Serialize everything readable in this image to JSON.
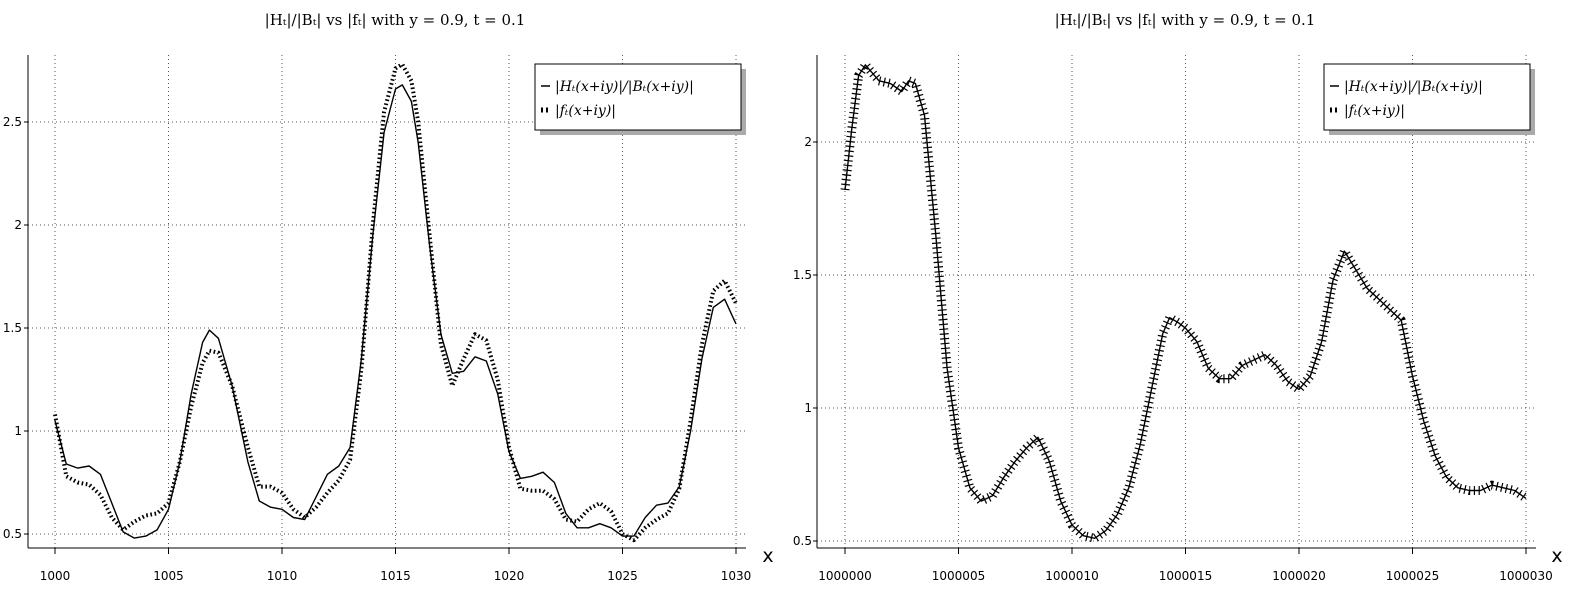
{
  "chart_data": [
    {
      "type": "line",
      "title": "|Hₜ|/|Bₜ| vs |fₜ| with y = 0.9, t = 0.1",
      "xlabel": "x",
      "ylabel": "",
      "xlim": [
        1000,
        1030
      ],
      "ylim": [
        0.45,
        2.8
      ],
      "xticks": [
        1000,
        1005,
        1010,
        1015,
        1020,
        1025,
        1030
      ],
      "yticks": [
        0.5,
        1,
        1.5,
        2,
        2.5
      ],
      "xtick_labels": [
        "1000",
        "1005",
        "1010",
        "1015",
        "1020",
        "1025",
        "1030"
      ],
      "ytick_labels": [
        "0.5",
        "1",
        "1.5",
        "2",
        "2.5"
      ],
      "grid": true,
      "legend_position": "top-right",
      "series": [
        {
          "name": "|Hₜ(x+iy)|/|Bₜ(x+iy)|",
          "style": "solid",
          "points": [
            [
              1000,
              1.05
            ],
            [
              1000.5,
              0.84
            ],
            [
              1001,
              0.82
            ],
            [
              1001.5,
              0.83
            ],
            [
              1002,
              0.79
            ],
            [
              1002.5,
              0.65
            ],
            [
              1003,
              0.51
            ],
            [
              1003.5,
              0.48
            ],
            [
              1004,
              0.49
            ],
            [
              1004.5,
              0.52
            ],
            [
              1005,
              0.62
            ],
            [
              1005.5,
              0.85
            ],
            [
              1006,
              1.18
            ],
            [
              1006.5,
              1.43
            ],
            [
              1006.8,
              1.49
            ],
            [
              1007.2,
              1.45
            ],
            [
              1007.8,
              1.22
            ],
            [
              1008.5,
              0.85
            ],
            [
              1009,
              0.66
            ],
            [
              1009.5,
              0.63
            ],
            [
              1010,
              0.62
            ],
            [
              1010.5,
              0.58
            ],
            [
              1011,
              0.57
            ],
            [
              1011.5,
              0.68
            ],
            [
              1012,
              0.79
            ],
            [
              1012.5,
              0.83
            ],
            [
              1013,
              0.92
            ],
            [
              1013.5,
              1.35
            ],
            [
              1014,
              1.95
            ],
            [
              1014.5,
              2.45
            ],
            [
              1015,
              2.66
            ],
            [
              1015.3,
              2.68
            ],
            [
              1015.7,
              2.6
            ],
            [
              1016,
              2.4
            ],
            [
              1016.5,
              1.9
            ],
            [
              1017,
              1.47
            ],
            [
              1017.5,
              1.28
            ],
            [
              1018,
              1.29
            ],
            [
              1018.5,
              1.36
            ],
            [
              1019,
              1.34
            ],
            [
              1019.5,
              1.18
            ],
            [
              1020,
              0.9
            ],
            [
              1020.5,
              0.77
            ],
            [
              1021,
              0.78
            ],
            [
              1021.5,
              0.8
            ],
            [
              1022,
              0.75
            ],
            [
              1022.5,
              0.6
            ],
            [
              1023,
              0.53
            ],
            [
              1023.5,
              0.53
            ],
            [
              1024,
              0.55
            ],
            [
              1024.5,
              0.53
            ],
            [
              1025,
              0.49
            ],
            [
              1025.5,
              0.49
            ],
            [
              1026,
              0.58
            ],
            [
              1026.5,
              0.64
            ],
            [
              1027,
              0.65
            ],
            [
              1027.5,
              0.73
            ],
            [
              1028,
              1.0
            ],
            [
              1028.5,
              1.35
            ],
            [
              1029,
              1.6
            ],
            [
              1029.5,
              1.64
            ],
            [
              1030,
              1.52
            ]
          ]
        },
        {
          "name": "|fₜ(x+iy)|",
          "style": "dotted",
          "points": [
            [
              1000,
              1.08
            ],
            [
              1000.5,
              0.78
            ],
            [
              1001,
              0.75
            ],
            [
              1001.5,
              0.74
            ],
            [
              1002,
              0.69
            ],
            [
              1002.5,
              0.58
            ],
            [
              1003,
              0.52
            ],
            [
              1003.5,
              0.56
            ],
            [
              1004,
              0.59
            ],
            [
              1004.5,
              0.6
            ],
            [
              1005,
              0.65
            ],
            [
              1005.5,
              0.85
            ],
            [
              1006,
              1.12
            ],
            [
              1006.5,
              1.33
            ],
            [
              1006.8,
              1.39
            ],
            [
              1007.2,
              1.38
            ],
            [
              1007.8,
              1.22
            ],
            [
              1008.5,
              0.92
            ],
            [
              1009,
              0.73
            ],
            [
              1009.5,
              0.73
            ],
            [
              1010,
              0.7
            ],
            [
              1010.5,
              0.62
            ],
            [
              1011,
              0.58
            ],
            [
              1011.5,
              0.63
            ],
            [
              1012,
              0.7
            ],
            [
              1012.5,
              0.76
            ],
            [
              1013,
              0.86
            ],
            [
              1013.5,
              1.3
            ],
            [
              1014,
              2.0
            ],
            [
              1014.5,
              2.55
            ],
            [
              1015,
              2.76
            ],
            [
              1015.3,
              2.78
            ],
            [
              1015.7,
              2.7
            ],
            [
              1016,
              2.5
            ],
            [
              1016.5,
              1.95
            ],
            [
              1017,
              1.42
            ],
            [
              1017.5,
              1.22
            ],
            [
              1018,
              1.35
            ],
            [
              1018.5,
              1.47
            ],
            [
              1019,
              1.44
            ],
            [
              1019.5,
              1.25
            ],
            [
              1020,
              0.92
            ],
            [
              1020.5,
              0.72
            ],
            [
              1021,
              0.71
            ],
            [
              1021.5,
              0.71
            ],
            [
              1022,
              0.67
            ],
            [
              1022.5,
              0.57
            ],
            [
              1023,
              0.56
            ],
            [
              1023.5,
              0.62
            ],
            [
              1024,
              0.65
            ],
            [
              1024.5,
              0.61
            ],
            [
              1025,
              0.5
            ],
            [
              1025.5,
              0.47
            ],
            [
              1026,
              0.53
            ],
            [
              1026.5,
              0.57
            ],
            [
              1027,
              0.6
            ],
            [
              1027.5,
              0.72
            ],
            [
              1028,
              1.05
            ],
            [
              1028.5,
              1.42
            ],
            [
              1029,
              1.68
            ],
            [
              1029.5,
              1.73
            ],
            [
              1030,
              1.62
            ]
          ]
        }
      ]
    },
    {
      "type": "line",
      "title": "|Hₜ|/|Bₜ| vs |fₜ| with y = 0.9, t = 0.1",
      "xlabel": "x",
      "ylabel": "",
      "xlim": [
        1000000,
        1000030
      ],
      "ylim": [
        0.48,
        2.32
      ],
      "xticks": [
        1000000,
        1000005,
        1000010,
        1000015,
        1000020,
        1000025,
        1000030
      ],
      "yticks": [
        0.5,
        1,
        1.5,
        2
      ],
      "xtick_labels": [
        "1000000",
        "1000005",
        "1000010",
        "1000015",
        "1000020",
        "1000025",
        "1000030"
      ],
      "ytick_labels": [
        "0.5",
        "1",
        "1.5",
        "2"
      ],
      "grid": true,
      "legend_position": "top-right",
      "series": [
        {
          "name": "|Hₜ(x+iy)|/|Bₜ(x+iy)|",
          "style": "solid",
          "points": [
            [
              1000000,
              1.82
            ],
            [
              1000000.3,
              2.05
            ],
            [
              1000000.6,
              2.25
            ],
            [
              1000000.9,
              2.29
            ],
            [
              1000001.2,
              2.26
            ],
            [
              1000001.5,
              2.23
            ],
            [
              1000002,
              2.22
            ],
            [
              1000002.5,
              2.19
            ],
            [
              1000002.8,
              2.23
            ],
            [
              1000003.1,
              2.22
            ],
            [
              1000003.5,
              2.1
            ],
            [
              1000004,
              1.65
            ],
            [
              1000004.5,
              1.15
            ],
            [
              1000005,
              0.85
            ],
            [
              1000005.5,
              0.7
            ],
            [
              1000006,
              0.65
            ],
            [
              1000006.5,
              0.67
            ],
            [
              1000007,
              0.74
            ],
            [
              1000007.5,
              0.8
            ],
            [
              1000008,
              0.85
            ],
            [
              1000008.5,
              0.89
            ],
            [
              1000009,
              0.8
            ],
            [
              1000009.5,
              0.65
            ],
            [
              1000010,
              0.56
            ],
            [
              1000010.5,
              0.52
            ],
            [
              1000011,
              0.51
            ],
            [
              1000011.5,
              0.54
            ],
            [
              1000012,
              0.6
            ],
            [
              1000012.5,
              0.7
            ],
            [
              1000013,
              0.86
            ],
            [
              1000013.5,
              1.07
            ],
            [
              1000014,
              1.28
            ],
            [
              1000014.3,
              1.34
            ],
            [
              1000014.7,
              1.32
            ],
            [
              1000015,
              1.3
            ],
            [
              1000015.5,
              1.25
            ],
            [
              1000016,
              1.15
            ],
            [
              1000016.5,
              1.11
            ],
            [
              1000017,
              1.11
            ],
            [
              1000017.5,
              1.16
            ],
            [
              1000018,
              1.18
            ],
            [
              1000018.5,
              1.2
            ],
            [
              1000019,
              1.16
            ],
            [
              1000019.5,
              1.1
            ],
            [
              1000020,
              1.07
            ],
            [
              1000020.5,
              1.12
            ],
            [
              1000021,
              1.25
            ],
            [
              1000021.5,
              1.48
            ],
            [
              1000022,
              1.59
            ],
            [
              1000022.5,
              1.52
            ],
            [
              1000023,
              1.45
            ],
            [
              1000023.5,
              1.41
            ],
            [
              1000024,
              1.37
            ],
            [
              1000024.5,
              1.33
            ],
            [
              1000025,
              1.12
            ],
            [
              1000025.5,
              0.95
            ],
            [
              1000026,
              0.82
            ],
            [
              1000026.5,
              0.74
            ],
            [
              1000027,
              0.7
            ],
            [
              1000027.5,
              0.69
            ],
            [
              1000028,
              0.69
            ],
            [
              1000028.5,
              0.71
            ],
            [
              1000029,
              0.7
            ],
            [
              1000029.5,
              0.69
            ],
            [
              1000030,
              0.66
            ]
          ]
        },
        {
          "name": "|fₜ(x+iy)|",
          "style": "ticks",
          "points": [
            [
              1000000,
              1.82
            ],
            [
              1000000.3,
              2.05
            ],
            [
              1000000.6,
              2.25
            ],
            [
              1000000.9,
              2.29
            ],
            [
              1000001.2,
              2.26
            ],
            [
              1000001.5,
              2.23
            ],
            [
              1000002,
              2.22
            ],
            [
              1000002.5,
              2.19
            ],
            [
              1000002.8,
              2.23
            ],
            [
              1000003.1,
              2.22
            ],
            [
              1000003.5,
              2.1
            ],
            [
              1000004,
              1.65
            ],
            [
              1000004.5,
              1.15
            ],
            [
              1000005,
              0.85
            ],
            [
              1000005.5,
              0.7
            ],
            [
              1000006,
              0.65
            ],
            [
              1000006.5,
              0.67
            ],
            [
              1000007,
              0.74
            ],
            [
              1000007.5,
              0.8
            ],
            [
              1000008,
              0.85
            ],
            [
              1000008.5,
              0.89
            ],
            [
              1000009,
              0.8
            ],
            [
              1000009.5,
              0.65
            ],
            [
              1000010,
              0.56
            ],
            [
              1000010.5,
              0.52
            ],
            [
              1000011,
              0.51
            ],
            [
              1000011.5,
              0.54
            ],
            [
              1000012,
              0.6
            ],
            [
              1000012.5,
              0.7
            ],
            [
              1000013,
              0.86
            ],
            [
              1000013.5,
              1.07
            ],
            [
              1000014,
              1.28
            ],
            [
              1000014.3,
              1.34
            ],
            [
              1000014.7,
              1.32
            ],
            [
              1000015,
              1.3
            ],
            [
              1000015.5,
              1.25
            ],
            [
              1000016,
              1.15
            ],
            [
              1000016.5,
              1.11
            ],
            [
              1000017,
              1.11
            ],
            [
              1000017.5,
              1.16
            ],
            [
              1000018,
              1.18
            ],
            [
              1000018.5,
              1.2
            ],
            [
              1000019,
              1.16
            ],
            [
              1000019.5,
              1.1
            ],
            [
              1000020,
              1.07
            ],
            [
              1000020.5,
              1.12
            ],
            [
              1000021,
              1.25
            ],
            [
              1000021.5,
              1.48
            ],
            [
              1000022,
              1.59
            ],
            [
              1000022.5,
              1.52
            ],
            [
              1000023,
              1.45
            ],
            [
              1000023.5,
              1.41
            ],
            [
              1000024,
              1.37
            ],
            [
              1000024.5,
              1.33
            ],
            [
              1000025,
              1.12
            ],
            [
              1000025.5,
              0.95
            ],
            [
              1000026,
              0.82
            ],
            [
              1000026.5,
              0.74
            ],
            [
              1000027,
              0.7
            ],
            [
              1000027.5,
              0.69
            ],
            [
              1000028,
              0.69
            ],
            [
              1000028.5,
              0.71
            ],
            [
              1000029,
              0.7
            ],
            [
              1000029.5,
              0.69
            ],
            [
              1000030,
              0.66
            ]
          ]
        }
      ]
    }
  ]
}
